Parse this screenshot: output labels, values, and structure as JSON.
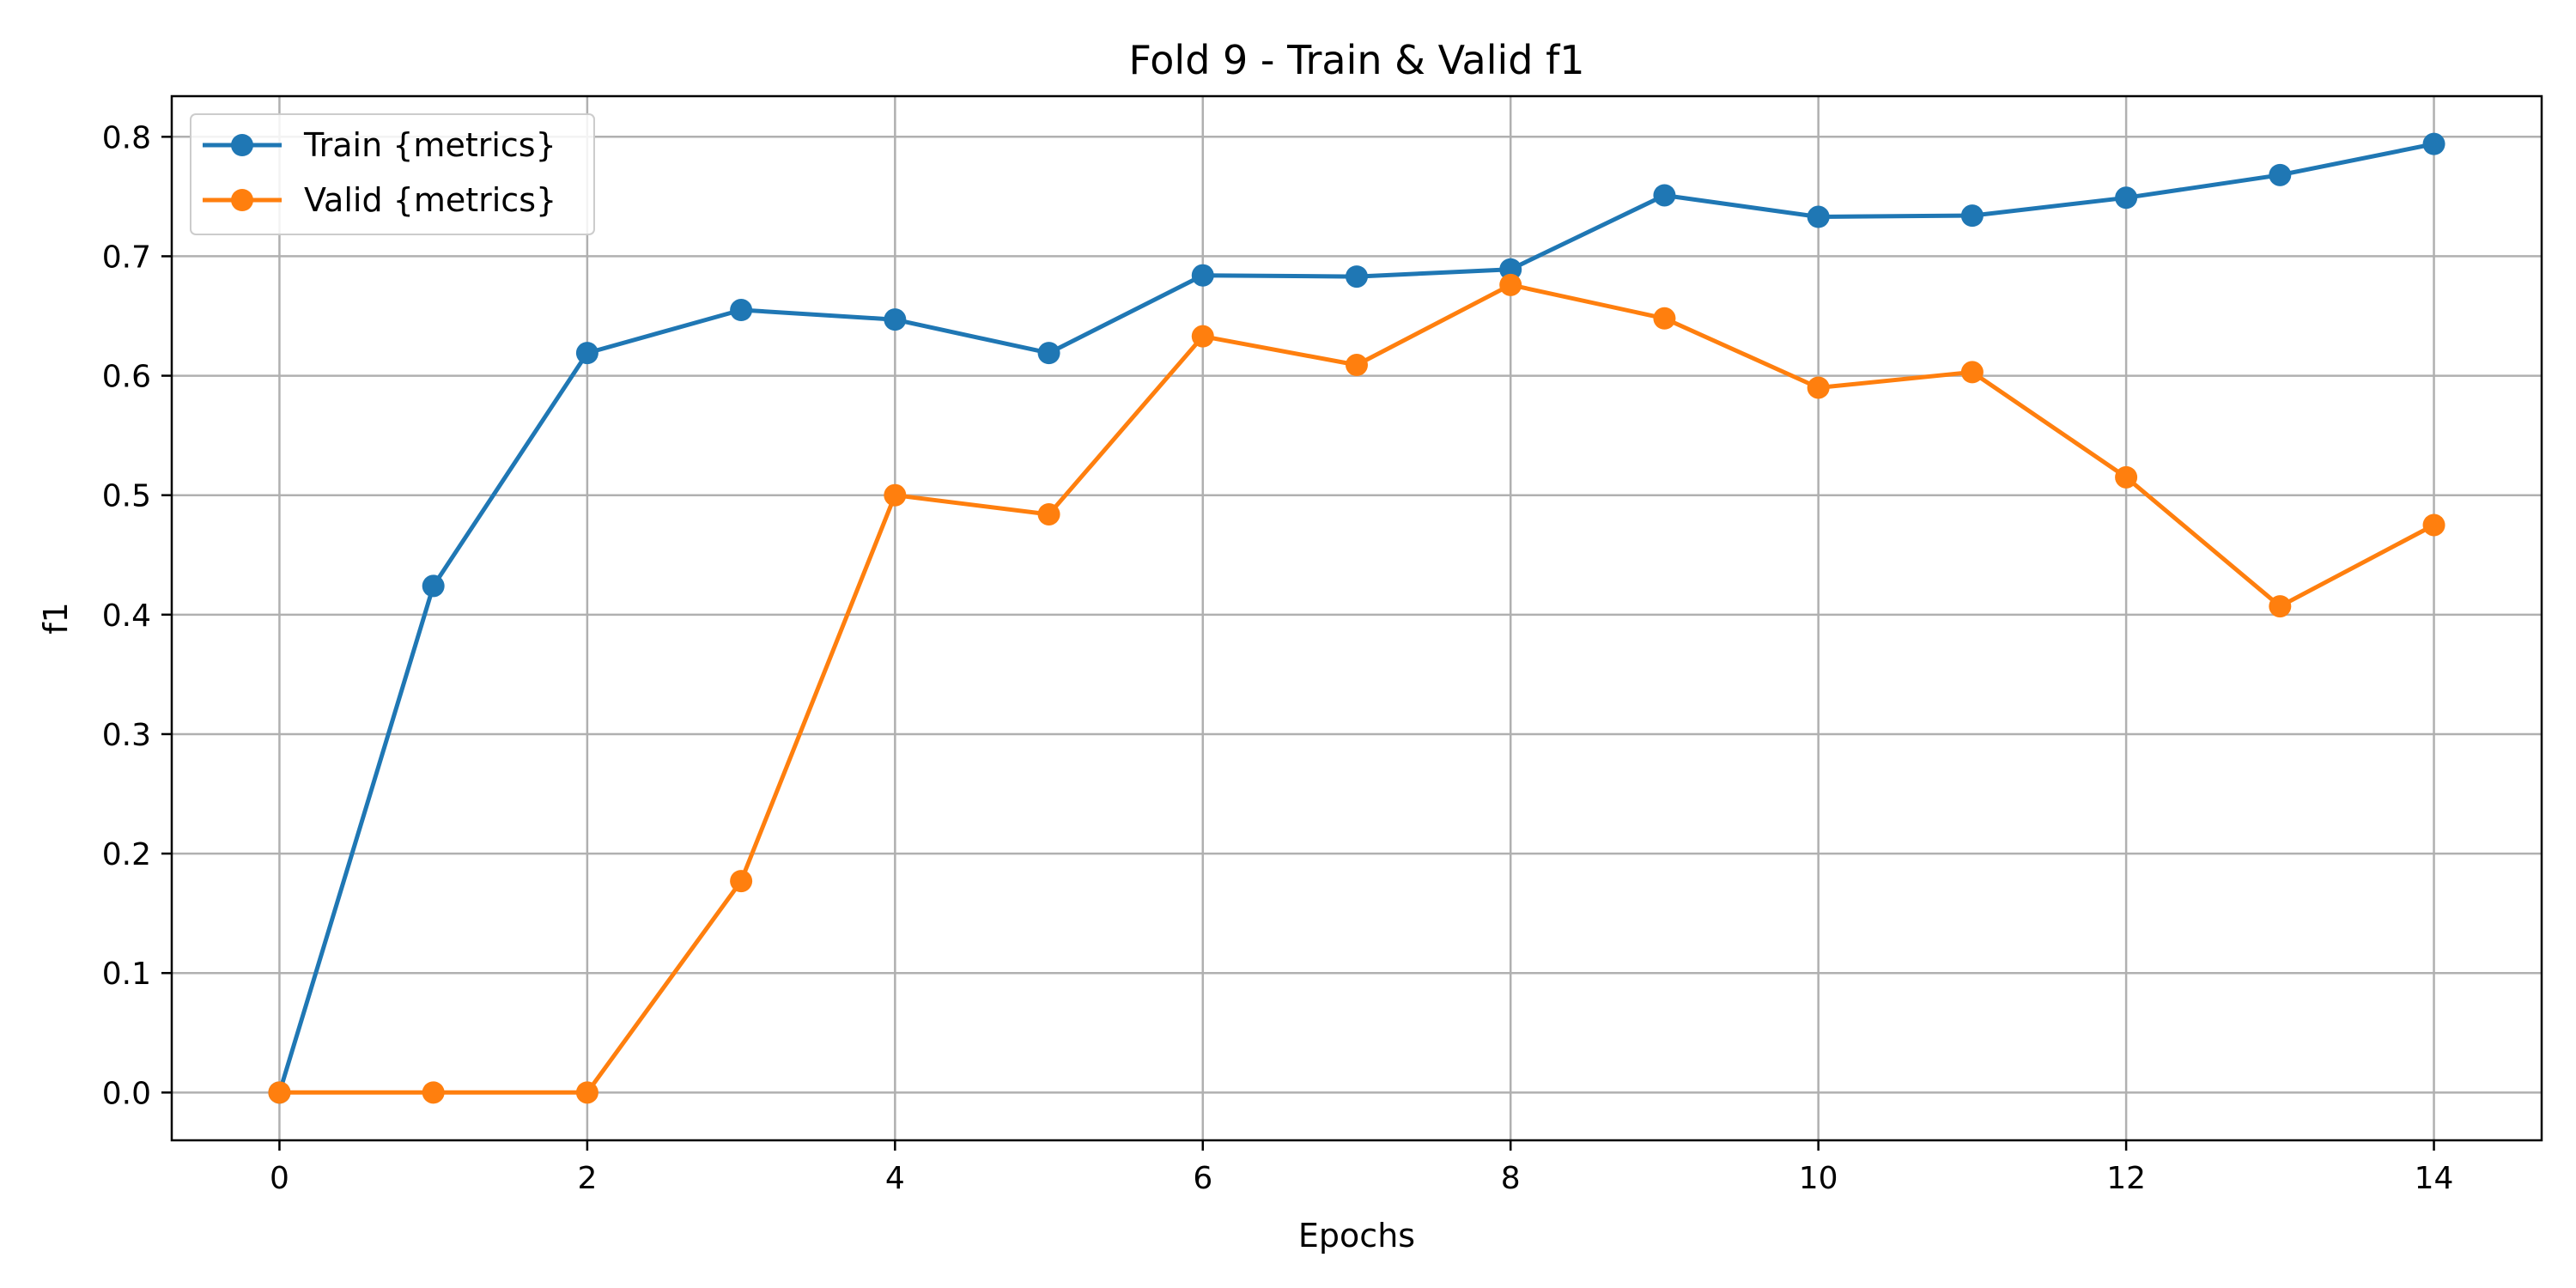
{
  "chart_data": {
    "type": "line",
    "title": "Fold 9 - Train & Valid f1",
    "xlabel": "Epochs",
    "ylabel": "f1",
    "x": [
      0,
      1,
      2,
      3,
      4,
      5,
      6,
      7,
      8,
      9,
      10,
      11,
      12,
      13,
      14
    ],
    "xlim": [
      -0.7,
      14.7
    ],
    "ylim": [
      -0.04,
      0.834
    ],
    "x_ticks": [
      0,
      2,
      4,
      6,
      8,
      10,
      12,
      14
    ],
    "y_ticks": [
      0.0,
      0.1,
      0.2,
      0.3,
      0.4,
      0.5,
      0.6,
      0.7,
      0.8
    ],
    "x_tick_labels": [
      "0",
      "2",
      "4",
      "6",
      "8",
      "10",
      "12",
      "14"
    ],
    "y_tick_labels": [
      "0.0",
      "0.1",
      "0.2",
      "0.3",
      "0.4",
      "0.5",
      "0.6",
      "0.7",
      "0.8"
    ],
    "grid": true,
    "legend_position": "top-left",
    "series": [
      {
        "name": "Train {metrics}",
        "color": "#1f77b4",
        "marker": "circle",
        "values": [
          0.0,
          0.424,
          0.619,
          0.655,
          0.647,
          0.619,
          0.684,
          0.683,
          0.689,
          0.751,
          0.733,
          0.734,
          0.749,
          0.768,
          0.794
        ]
      },
      {
        "name": "Valid {metrics}",
        "color": "#ff7f0e",
        "marker": "circle",
        "values": [
          0.0,
          0.0,
          0.0,
          0.177,
          0.5,
          0.484,
          0.633,
          0.609,
          0.676,
          0.648,
          0.59,
          0.603,
          0.515,
          0.407,
          0.475
        ]
      }
    ]
  }
}
